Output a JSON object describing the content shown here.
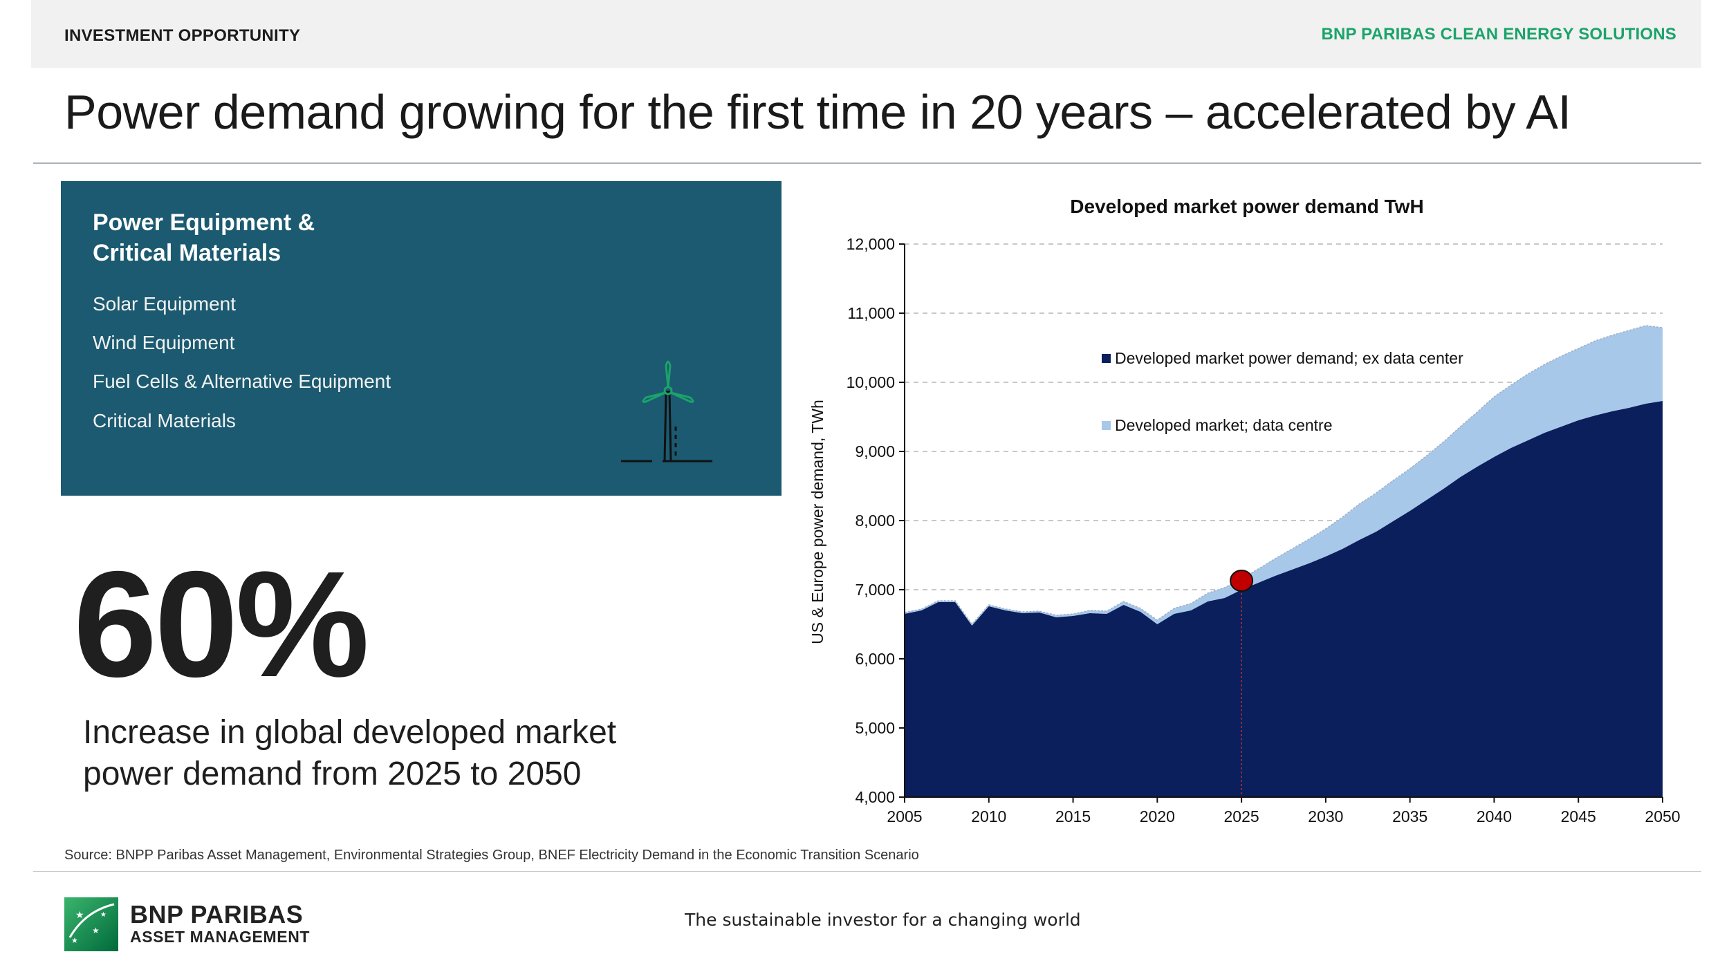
{
  "header": {
    "left_label": "INVESTMENT OPPORTUNITY",
    "right_label": "BNP PARIBAS CLEAN ENERGY SOLUTIONS"
  },
  "title": "Power demand growing for the first time in 20 years – accelerated by AI",
  "panel": {
    "heading_line1": "Power Equipment &",
    "heading_line2": "Critical Materials",
    "items": [
      "Solar Equipment",
      "Wind Equipment",
      "Fuel Cells & Alternative Equipment",
      "Critical Materials"
    ],
    "icon": "wind-turbine-icon"
  },
  "stat": {
    "value": "60%",
    "description": "Increase in global developed market power demand from 2025 to 2050"
  },
  "chart_data": {
    "type": "area",
    "title": "Developed market power demand TwH",
    "xlabel": "",
    "ylabel": "US & Europe power demand, TWh",
    "xlim": [
      2005,
      2050
    ],
    "ylim": [
      4000,
      12000
    ],
    "yticks": [
      4000,
      5000,
      6000,
      7000,
      8000,
      9000,
      10000,
      11000,
      12000
    ],
    "ytick_labels": [
      "4,000",
      "5,000",
      "6,000",
      "7,000",
      "8,000",
      "9,000",
      "10,000",
      "11,000",
      "12,000"
    ],
    "xticks": [
      2005,
      2010,
      2015,
      2020,
      2025,
      2030,
      2035,
      2040,
      2045,
      2050
    ],
    "grid": "horizontal-dashed",
    "legend": "inside-top-center",
    "highlight": {
      "x": 2025,
      "y": 7130,
      "color": "#c00000"
    },
    "x": [
      2005,
      2006,
      2007,
      2008,
      2009,
      2010,
      2011,
      2012,
      2013,
      2014,
      2015,
      2016,
      2017,
      2018,
      2019,
      2020,
      2021,
      2022,
      2023,
      2024,
      2025,
      2026,
      2027,
      2028,
      2029,
      2030,
      2031,
      2032,
      2033,
      2034,
      2035,
      2036,
      2037,
      2038,
      2039,
      2040,
      2041,
      2042,
      2043,
      2044,
      2045,
      2046,
      2047,
      2048,
      2049,
      2050
    ],
    "series": [
      {
        "name": "Developed market power demand; ex data center",
        "color": "#0a1f5c",
        "values": [
          6650,
          6700,
          6820,
          6820,
          6480,
          6760,
          6700,
          6660,
          6670,
          6600,
          6620,
          6660,
          6650,
          6780,
          6680,
          6500,
          6650,
          6700,
          6830,
          6880,
          7000,
          7100,
          7200,
          7290,
          7380,
          7480,
          7590,
          7720,
          7840,
          7990,
          8140,
          8300,
          8460,
          8630,
          8780,
          8920,
          9050,
          9160,
          9270,
          9360,
          9450,
          9520,
          9580,
          9630,
          9690,
          9730
        ]
      },
      {
        "name": "Developed market; data centre",
        "color": "#a8c8ea",
        "values": [
          20,
          20,
          20,
          20,
          20,
          20,
          20,
          20,
          20,
          30,
          30,
          40,
          40,
          50,
          50,
          60,
          80,
          100,
          120,
          150,
          160,
          200,
          250,
          300,
          350,
          400,
          460,
          520,
          560,
          590,
          610,
          640,
          680,
          730,
          790,
          870,
          910,
          960,
          990,
          1020,
          1040,
          1080,
          1100,
          1120,
          1130,
          1060
        ]
      }
    ]
  },
  "source": "Source: BNPP Paribas Asset Management, Environmental Strategies Group, BNEF Electricity Demand in the Economic Transition Scenario",
  "footer": {
    "logo_line1": "BNP PARIBAS",
    "logo_line2": "ASSET MANAGEMENT",
    "tagline": "The sustainable investor for a changing world"
  },
  "colors": {
    "accent_green": "#1ba36a",
    "panel_teal": "#1b5a70",
    "navy": "#0a1f5c",
    "light_blue": "#a8c8ea",
    "marker_red": "#c00000"
  }
}
